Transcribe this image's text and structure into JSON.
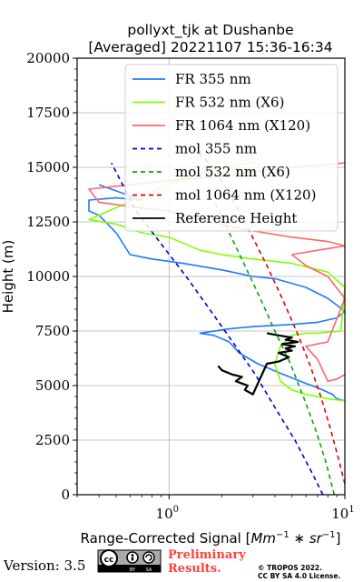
{
  "chart_data": {
    "type": "line",
    "title": "pollyxt_tjk at Dushanbe",
    "subtitle": "[Averaged] 20221107 15:36-16:34",
    "xlabel": "Range-Corrected Signal [Mm^-1 * sr^-1]",
    "ylabel": "Height (m)",
    "xscale": "log",
    "xlim": [
      0.3,
      10
    ],
    "ylim": [
      0,
      20000
    ],
    "xticks": [
      {
        "value": 1,
        "label": "10^0"
      },
      {
        "value": 10,
        "label": "10^1"
      }
    ],
    "yticks": [
      0,
      2500,
      5000,
      7500,
      10000,
      12500,
      15000,
      17500,
      20000
    ],
    "ytick_labels": [
      "0",
      "2500",
      "5000",
      "7500",
      "10000",
      "12500",
      "15000",
      "17500",
      "20000"
    ],
    "grid": true,
    "legend_position": "top-right",
    "series": [
      {
        "name": "FR 355 nm",
        "color": "#1f77ff",
        "style": "solid",
        "x": [
          10,
          9,
          8.5,
          7,
          6,
          4.5,
          3.2,
          2.5,
          2.2,
          1.8,
          1.5,
          2.2,
          3.0,
          5.0,
          7.0,
          9.0,
          10,
          8,
          6,
          4,
          3,
          2,
          1.2,
          0.8,
          0.6,
          0.5,
          0.4,
          0.35,
          0.35,
          0.5,
          0.7,
          0.4
        ],
        "y": [
          4300,
          4400,
          4600,
          4900,
          5100,
          5500,
          6000,
          6500,
          7000,
          7300,
          7400,
          7600,
          7700,
          7800,
          7900,
          8100,
          8400,
          9000,
          9500,
          9900,
          10000,
          10300,
          10600,
          10800,
          11000,
          12000,
          12800,
          13000,
          13500,
          13600,
          13500,
          14200
        ]
      },
      {
        "name": "FR 532 nm (X6)",
        "color": "#80ff00",
        "style": "solid",
        "x": [
          10,
          8,
          6,
          5,
          4.3,
          4,
          4.3,
          5,
          6,
          7,
          8,
          9.5,
          10,
          8,
          5,
          3,
          2,
          1.5,
          1,
          0.7,
          0.5,
          0.35,
          1.2,
          2,
          3
        ],
        "y": [
          4300,
          4400,
          4600,
          4800,
          5200,
          6000,
          6800,
          7300,
          7400,
          7400,
          7450,
          7500,
          9500,
          10200,
          10600,
          10800,
          11000,
          11200,
          11800,
          12000,
          12400,
          12600,
          14500,
          15000,
          15200
        ]
      },
      {
        "name": "FR 1064 nm (X120)",
        "color": "#ff6666",
        "style": "solid",
        "x": [
          10,
          9,
          8,
          7,
          6,
          8,
          10,
          8,
          6,
          5,
          7,
          10,
          8,
          5,
          3.5,
          2.5,
          1.5,
          1,
          0.6,
          0.4,
          0.35,
          0.6,
          1,
          2,
          3,
          5,
          10
        ],
        "y": [
          5500,
          5300,
          5200,
          6200,
          6800,
          7000,
          9000,
          10000,
          10500,
          11000,
          11200,
          11400,
          11600,
          11800,
          12000,
          12200,
          12600,
          13000,
          13200,
          13400,
          14000,
          14200,
          14400,
          14600,
          14800,
          15000,
          15200
        ]
      },
      {
        "name": "mol 355 nm",
        "color": "#0000cc",
        "style": "dashed",
        "x": [
          7.5,
          6.5,
          5.2,
          4.0,
          3.1,
          2.3,
          1.7,
          1.25,
          0.9,
          0.65,
          0.47
        ],
        "y": [
          0,
          1000,
          2500,
          4000,
          5500,
          7000,
          8500,
          10000,
          11500,
          13000,
          15200
        ]
      },
      {
        "name": "mol 532 nm (X6)",
        "color": "#00aa00",
        "style": "dashed",
        "x": [
          8.7,
          7.8,
          6.8,
          5.8,
          4.9,
          4.0,
          3.3,
          2.7,
          2.2,
          1.8
        ],
        "y": [
          0,
          1500,
          3000,
          4500,
          6000,
          7500,
          9000,
          10500,
          12000,
          13500
        ]
      },
      {
        "name": "mol 1064 nm (X120)",
        "color": "#dd0000",
        "style": "dashed",
        "x": [
          10,
          9.3,
          8.3,
          7.3,
          6.3,
          5.3,
          4.4,
          3.6,
          2.9,
          2.3,
          1.8,
          1.5
        ],
        "y": [
          500,
          1500,
          3000,
          4500,
          6000,
          7500,
          9000,
          10500,
          12000,
          13500,
          15000,
          15600
        ]
      },
      {
        "name": "Reference Height",
        "color": "#000000",
        "style": "solid",
        "x": [
          1.9,
          2.0,
          2.3,
          2.6,
          2.4,
          2.8,
          2.7,
          3.0,
          3.6,
          4.2,
          4.8,
          4.2,
          5.0,
          4.6,
          5.2,
          4.4,
          5.4,
          4.6,
          5.0,
          4.2,
          3.6
        ],
        "y": [
          5900,
          5700,
          5500,
          5400,
          5200,
          5000,
          4800,
          4600,
          6000,
          6100,
          6300,
          6500,
          6600,
          6700,
          6800,
          6900,
          7000,
          7100,
          7200,
          7300,
          7400
        ]
      }
    ]
  },
  "footer": {
    "version": "Version: 3.5",
    "prelim_line1": "Preliminary",
    "prelim_line2": "Results.",
    "copyright_line1": "© TROPOS 2022.",
    "copyright_line2": "CC BY SA 4.0 License."
  },
  "colors": {
    "prelim": "#ff4040"
  }
}
